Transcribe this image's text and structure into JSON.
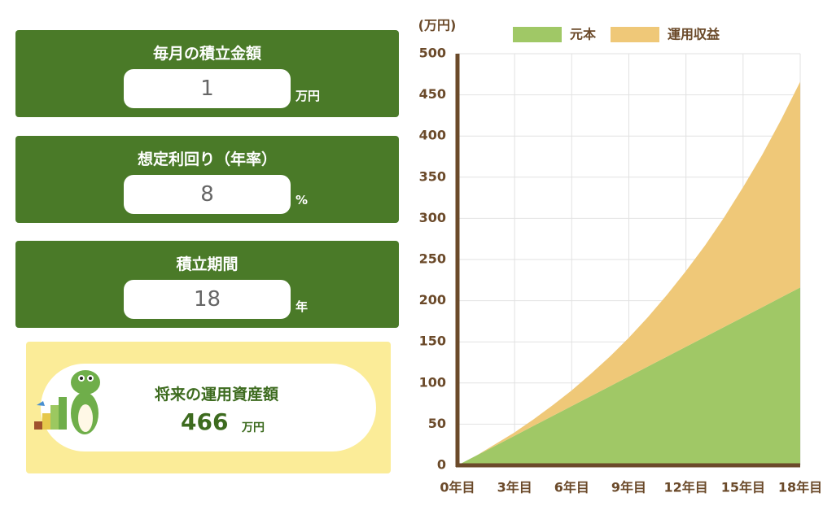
{
  "form": {
    "fields": [
      {
        "label": "毎月の積立金額",
        "value": "1",
        "unit": "万円"
      },
      {
        "label": "想定利回り（年率）",
        "value": "8",
        "unit": "%"
      },
      {
        "label": "積立期間",
        "value": "18",
        "unit": "年"
      }
    ],
    "result": {
      "label": "将来の運用資産額",
      "value": "466",
      "unit": "万円"
    }
  },
  "chart_data": {
    "type": "stacked_area",
    "y_unit_label": "(万円)",
    "x": [
      0,
      1,
      2,
      3,
      4,
      5,
      6,
      7,
      8,
      9,
      10,
      11,
      12,
      13,
      14,
      15,
      16,
      17,
      18
    ],
    "series": [
      {
        "name": "元本",
        "color": "#a0c866",
        "values": [
          0,
          12,
          24,
          36,
          48,
          60,
          72,
          84,
          96,
          108,
          120,
          132,
          144,
          156,
          168,
          180,
          192,
          204,
          216
        ]
      },
      {
        "name": "運用収益",
        "color": "#efc878",
        "values": [
          0,
          0,
          2,
          4,
          8,
          13,
          19,
          27,
          36,
          47,
          60,
          75,
          92,
          111,
          133,
          158,
          185,
          216,
          250
        ]
      }
    ],
    "xlim": [
      0,
      18
    ],
    "xticks": [
      {
        "value": 0,
        "label": "0年目"
      },
      {
        "value": 3,
        "label": "3年目"
      },
      {
        "value": 6,
        "label": "6年目"
      },
      {
        "value": 9,
        "label": "9年目"
      },
      {
        "value": 12,
        "label": "12年目"
      },
      {
        "value": 15,
        "label": "15年目"
      },
      {
        "value": 18,
        "label": "18年目"
      }
    ],
    "ylim": [
      0,
      500
    ],
    "yticks": [
      0,
      50,
      100,
      150,
      200,
      250,
      300,
      350,
      400,
      450,
      500
    ],
    "grid": true,
    "legend": "top"
  }
}
